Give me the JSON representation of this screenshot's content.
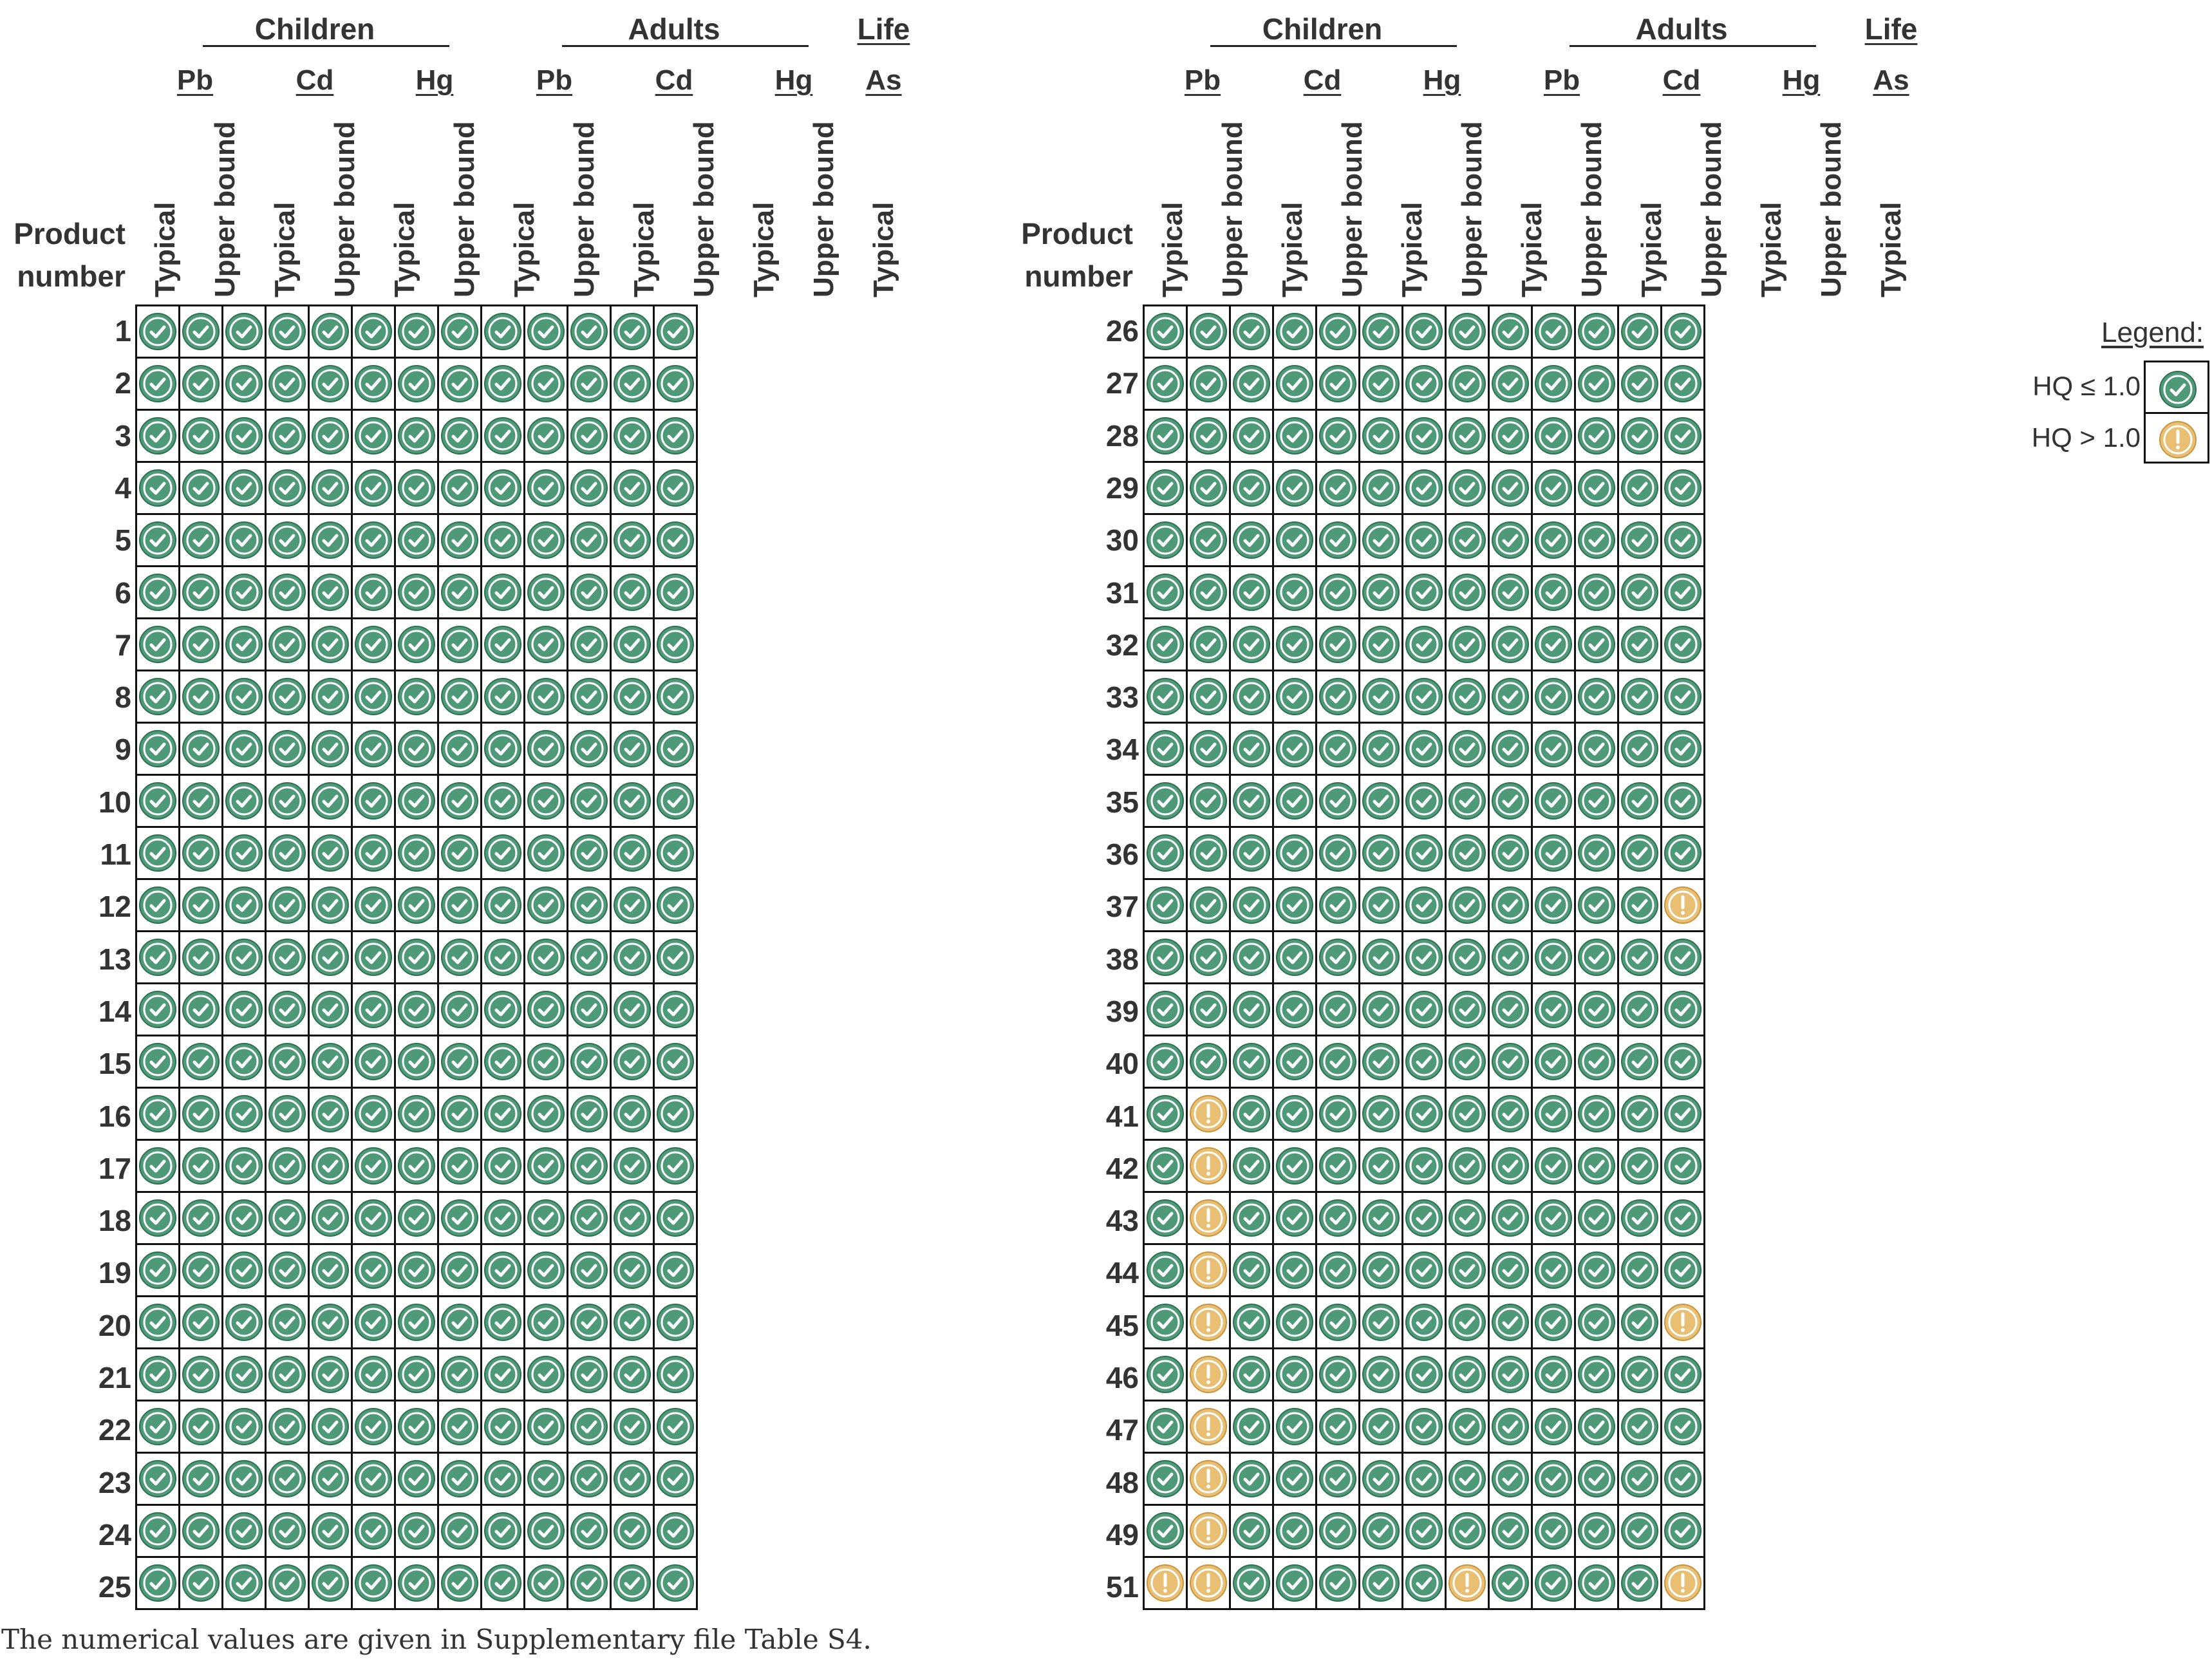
{
  "chart_data": {
    "type": "table",
    "title": "",
    "groups": [
      {
        "name": "Children",
        "metals": [
          "Pb",
          "Cd",
          "Hg"
        ]
      },
      {
        "name": "Adults",
        "metals": [
          "Pb",
          "Cd",
          "Hg"
        ]
      },
      {
        "name": "Life",
        "metals": [
          "As"
        ]
      }
    ],
    "scenarios": [
      "Typical",
      "Upper bound"
    ],
    "row_label": [
      "Product",
      "number"
    ],
    "columns": [
      {
        "group": "Children",
        "metal": "Pb",
        "scenario": "Typical"
      },
      {
        "group": "Children",
        "metal": "Pb",
        "scenario": "Upper bound"
      },
      {
        "group": "Children",
        "metal": "Cd",
        "scenario": "Typical"
      },
      {
        "group": "Children",
        "metal": "Cd",
        "scenario": "Upper bound"
      },
      {
        "group": "Children",
        "metal": "Hg",
        "scenario": "Typical"
      },
      {
        "group": "Children",
        "metal": "Hg",
        "scenario": "Upper bound"
      },
      {
        "group": "Adults",
        "metal": "Pb",
        "scenario": "Typical"
      },
      {
        "group": "Adults",
        "metal": "Pb",
        "scenario": "Upper bound"
      },
      {
        "group": "Adults",
        "metal": "Cd",
        "scenario": "Typical"
      },
      {
        "group": "Adults",
        "metal": "Cd",
        "scenario": "Upper bound"
      },
      {
        "group": "Adults",
        "metal": "Hg",
        "scenario": "Typical"
      },
      {
        "group": "Adults",
        "metal": "Hg",
        "scenario": "Upper bound"
      },
      {
        "group": "Life",
        "metal": "As",
        "scenario": "Typical"
      }
    ],
    "panels": [
      {
        "products": [
          1,
          2,
          3,
          4,
          5,
          6,
          7,
          8,
          9,
          10,
          11,
          12,
          13,
          14,
          15,
          16,
          17,
          18,
          19,
          20,
          21,
          22,
          23,
          24,
          25
        ]
      },
      {
        "products": [
          26,
          27,
          28,
          29,
          30,
          31,
          32,
          33,
          34,
          35,
          36,
          37,
          38,
          39,
          40,
          41,
          42,
          43,
          44,
          45,
          46,
          47,
          48,
          49,
          51
        ]
      }
    ],
    "exceedances": [
      {
        "product": 37,
        "columns": [
          12
        ]
      },
      {
        "product": 41,
        "columns": [
          1
        ]
      },
      {
        "product": 42,
        "columns": [
          1
        ]
      },
      {
        "product": 43,
        "columns": [
          1
        ]
      },
      {
        "product": 44,
        "columns": [
          1
        ]
      },
      {
        "product": 45,
        "columns": [
          1,
          12
        ]
      },
      {
        "product": 46,
        "columns": [
          1
        ]
      },
      {
        "product": 47,
        "columns": [
          1
        ]
      },
      {
        "product": 48,
        "columns": [
          1
        ]
      },
      {
        "product": 49,
        "columns": [
          1
        ]
      },
      {
        "product": 51,
        "columns": [
          0,
          1,
          7,
          12
        ]
      }
    ],
    "legend": {
      "title": "Legend:",
      "placement": "top-right",
      "items": [
        {
          "label": "HQ ≤ 1.0",
          "icon": "check-circle-icon",
          "color": "#4e9a78"
        },
        {
          "label": "HQ > 1.0",
          "icon": "exclamation-circle-icon",
          "color": "#e8bf73"
        }
      ]
    }
  },
  "caption": "The numerical values are given in Supplementary file Table S4."
}
